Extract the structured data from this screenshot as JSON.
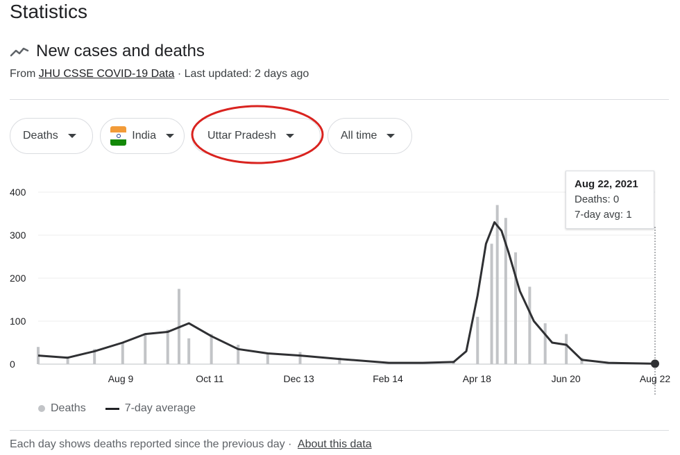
{
  "page": {
    "title": "Statistics"
  },
  "section": {
    "icon": "trending-line-icon",
    "heading": "New cases and deaths",
    "source_prefix": "From",
    "source_link": "JHU CSSE COVID-19 Data",
    "separator": "·",
    "updated": "Last updated: 2 days ago"
  },
  "filters": {
    "metric": "Deaths",
    "country": "India",
    "country_flag_icon": "india-flag-icon",
    "region": "Uttar Pradesh",
    "range": "All time"
  },
  "annotation": {
    "highlight_color": "#d9231f"
  },
  "tooltip": {
    "date": "Aug 22, 2021",
    "deaths": "Deaths: 0",
    "avg": "7-day avg: 1"
  },
  "legend": {
    "bars": "Deaths",
    "line": "7-day average"
  },
  "footer": {
    "text": "Each day shows deaths reported since the previous day",
    "separator": "·",
    "link": "About this data"
  },
  "colors": {
    "bars": "#c2c4c7",
    "avg_line": "#2f3033",
    "text": "#202124"
  },
  "chart_data": {
    "type": "bar",
    "ylim": [
      0,
      400
    ],
    "yticks": [
      0,
      100,
      200,
      300,
      400
    ],
    "x_tick_labels": [
      "Aug 9",
      "Oct 11",
      "Dec 13",
      "Feb 14",
      "Apr 18",
      "Jun 20",
      "Aug 22"
    ],
    "x_start": "Jun 10, 2020",
    "x_end": "Aug 22, 2021",
    "grid": true,
    "legend_position": "bottom-left",
    "series": [
      {
        "name": "Deaths",
        "type": "bar",
        "x": [
          "Jun 10, 2020",
          "Jul 1, 2020",
          "Jul 20, 2020",
          "Aug 9, 2020",
          "Aug 25, 2020",
          "Sep 10, 2020",
          "Sep 18, 2020",
          "Sep 25, 2020",
          "Oct 11, 2020",
          "Oct 30, 2020",
          "Nov 20, 2020",
          "Dec 13, 2020",
          "Jan 10, 2021",
          "Feb 14, 2021",
          "Mar 10, 2021",
          "Apr 1, 2021",
          "Apr 18, 2021",
          "Apr 28, 2021",
          "May 2, 2021",
          "May 8, 2021",
          "May 15, 2021",
          "May 25, 2021",
          "Jun 5, 2021",
          "Jun 20, 2021",
          "Jul 1, 2021",
          "Jul 20, 2021",
          "Aug 22, 2021"
        ],
        "values": [
          40,
          18,
          35,
          50,
          72,
          80,
          175,
          60,
          70,
          45,
          25,
          28,
          15,
          3,
          3,
          8,
          110,
          280,
          370,
          340,
          260,
          180,
          95,
          70,
          15,
          5,
          0
        ]
      },
      {
        "name": "7-day average",
        "type": "line",
        "x": [
          "Jun 10, 2020",
          "Jul 1, 2020",
          "Jul 20, 2020",
          "Aug 9, 2020",
          "Aug 25, 2020",
          "Sep 10, 2020",
          "Sep 25, 2020",
          "Oct 11, 2020",
          "Oct 30, 2020",
          "Nov 20, 2020",
          "Dec 13, 2020",
          "Jan 10, 2021",
          "Feb 14, 2021",
          "Mar 10, 2021",
          "Apr 1, 2021",
          "Apr 10, 2021",
          "Apr 18, 2021",
          "Apr 24, 2021",
          "Apr 30, 2021",
          "May 5, 2021",
          "May 10, 2021",
          "May 18, 2021",
          "May 28, 2021",
          "Jun 10, 2021",
          "Jun 20, 2021",
          "Jul 1, 2021",
          "Jul 20, 2021",
          "Aug 22, 2021"
        ],
        "values": [
          20,
          15,
          30,
          50,
          70,
          75,
          95,
          65,
          35,
          25,
          20,
          12,
          3,
          3,
          5,
          30,
          160,
          280,
          330,
          310,
          260,
          170,
          100,
          50,
          45,
          10,
          3,
          1
        ]
      }
    ]
  }
}
